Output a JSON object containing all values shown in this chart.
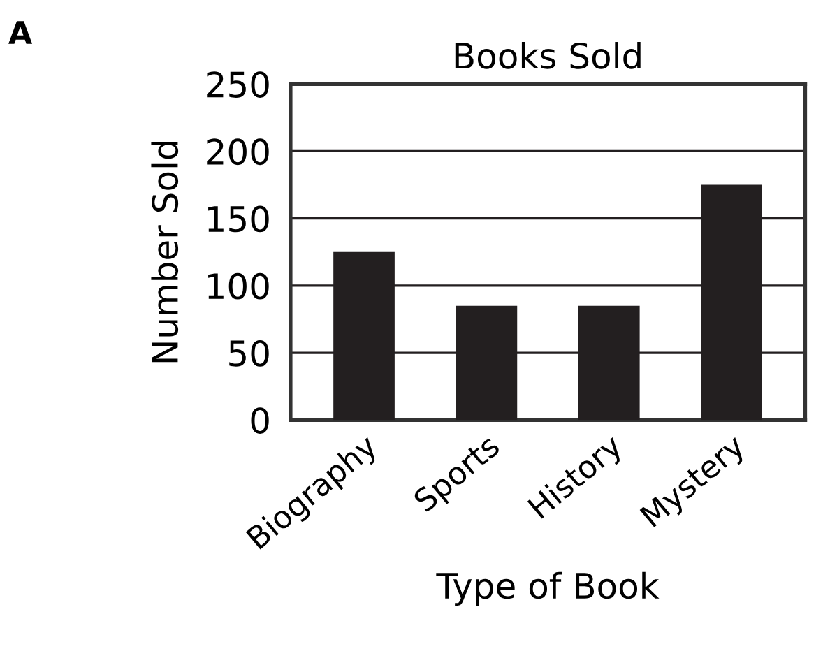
{
  "chart_data": {
    "type": "bar",
    "title": "Books Sold",
    "xlabel": "Type of Book",
    "ylabel": "Number Sold",
    "annotations": [
      "A"
    ],
    "categories": [
      "Biography",
      "Sports",
      "History",
      "Mystery"
    ],
    "values": [
      125,
      85,
      85,
      175
    ],
    "color": "#231f20",
    "ylim": [
      0,
      250
    ],
    "yticks": [
      0,
      50,
      100,
      150,
      200,
      250
    ],
    "grid": "y"
  }
}
